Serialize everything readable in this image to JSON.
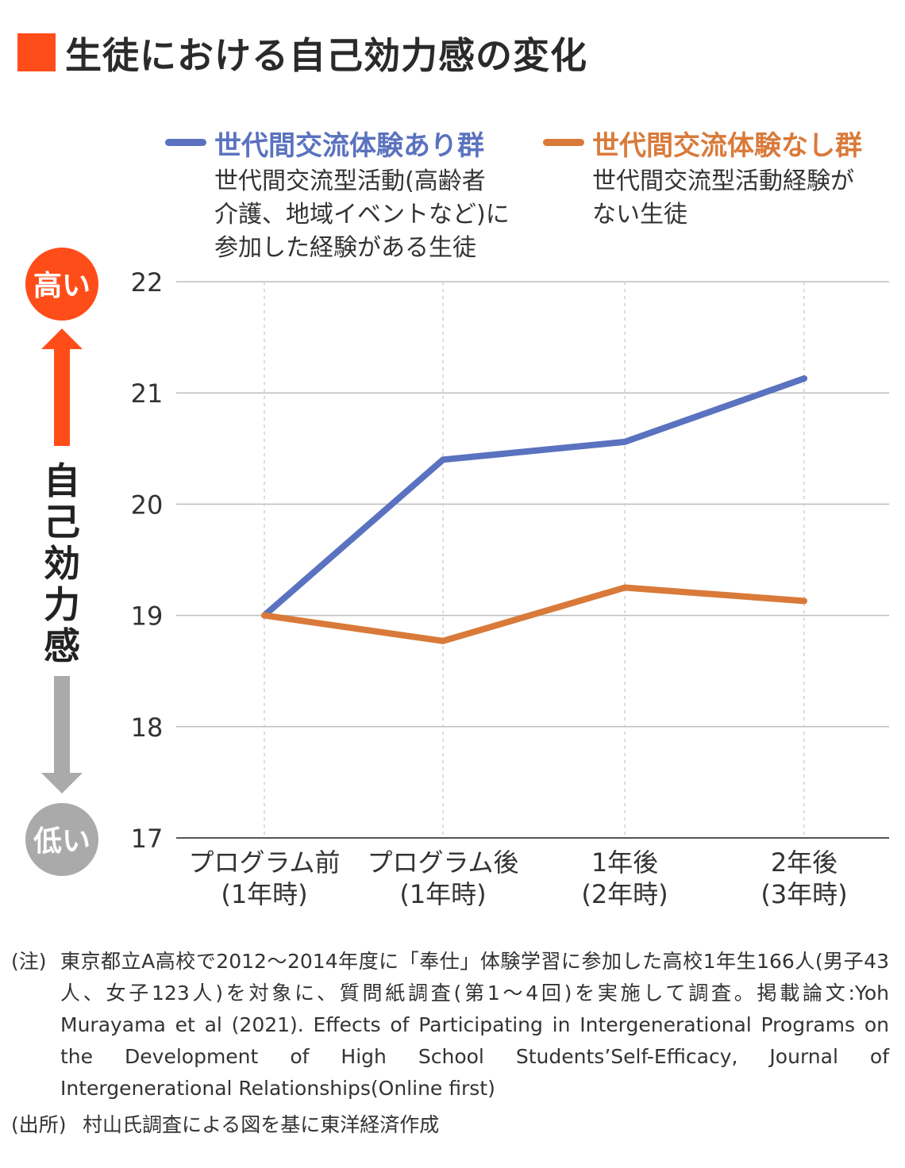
{
  "title": "生徒における自己効力感の変化",
  "legend": [
    {
      "name": "世代間交流体験あり群",
      "color": "#5a72bf",
      "description": "世代間交流型活動(高齢者\n介護、地域イベントなど)に\n参加した経験がある生徒"
    },
    {
      "name": "世代間交流体験なし群",
      "color": "#d97a3a",
      "description": "世代間交流型活動経験が\nない生徒"
    }
  ],
  "y_indicator": {
    "high": "高い",
    "low": "低い",
    "label": "自己効力感",
    "high_color": "#ff4d1a",
    "low_color": "#aaaaaa"
  },
  "chart_data": {
    "type": "line",
    "categories": [
      [
        "プログラム前",
        "(1年時)"
      ],
      [
        "プログラム後",
        "(1年時)"
      ],
      [
        "1年後",
        "(2年時)"
      ],
      [
        "2年後",
        "(3年時)"
      ]
    ],
    "series": [
      {
        "name": "世代間交流体験あり群",
        "color": "#5a72bf",
        "values": [
          19.0,
          20.4,
          20.56,
          21.13
        ]
      },
      {
        "name": "世代間交流体験なし群",
        "color": "#d97a3a",
        "values": [
          19.0,
          18.77,
          19.25,
          19.13
        ]
      }
    ],
    "ylim": [
      17,
      22
    ],
    "yticks": [
      17,
      18,
      19,
      20,
      21,
      22
    ],
    "xlabel": "",
    "ylabel": "自己効力感",
    "grid": true
  },
  "notes": {
    "note_label": "(注)",
    "note_text": "東京都立A高校で2012〜2014年度に「奉仕」体験学習に参加した高校1年生166人(男子43人、女子123人)を対象に、質問紙調査(第1〜4回)を実施して調査。掲載論文:Yoh Murayama et al (2021). Effects of Participating in Intergenerational Programs on the Development of High School Students’Self-Efficacy, Journal of Intergenerational Relationships(Online first)",
    "source_label": "(出所)",
    "source_text": "村山氏調査による図を基に東洋経済作成"
  }
}
